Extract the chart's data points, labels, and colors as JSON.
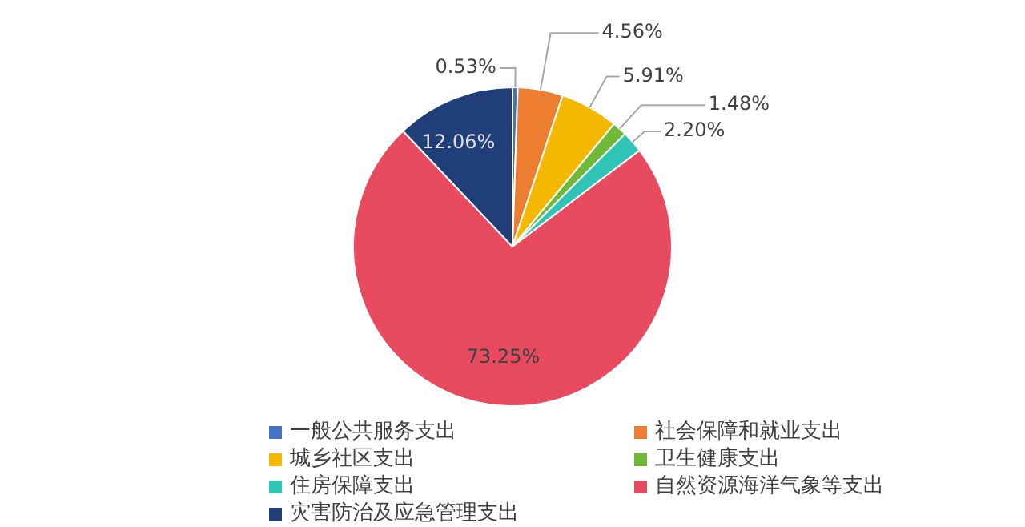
{
  "chart_data": {
    "type": "pie",
    "categories": [
      "一般公共服务支出",
      "社会保障和就业支出",
      "城乡社区支出",
      "卫生健康支出",
      "住房保障支出",
      "自然资源海洋气象等支出",
      "灾害防治及应急管理支出"
    ],
    "values": [
      0.53,
      4.56,
      5.91,
      1.48,
      2.2,
      73.25,
      12.06
    ],
    "colors": [
      "#4472c4",
      "#ed7d31",
      "#f5b800",
      "#70b838",
      "#2ec4b6",
      "#e84a5f",
      "#203f7a"
    ],
    "value_labels": [
      "0.53%",
      "4.56%",
      "5.91%",
      "1.48%",
      "2.20%",
      "73.25%",
      "12.06%"
    ],
    "legend": "bottom"
  }
}
